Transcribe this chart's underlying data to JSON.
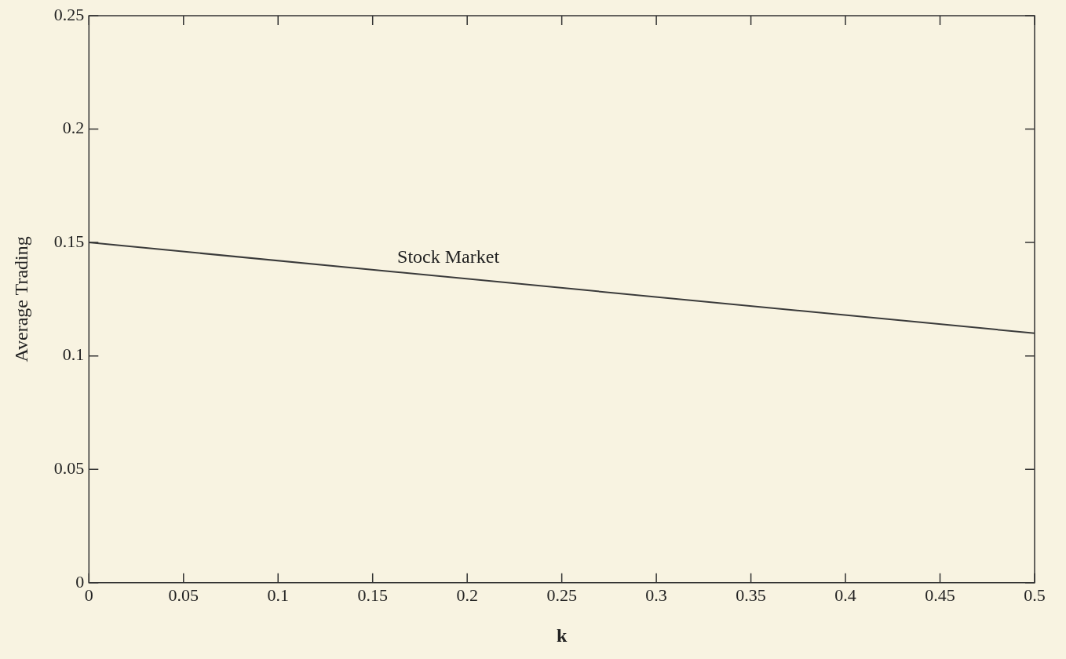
{
  "chart_data": {
    "type": "line",
    "xlabel": "k",
    "ylabel": "Average Trading",
    "x": [
      0,
      0.5
    ],
    "series": [
      {
        "name": "Stock Market",
        "color": "#3a3a3a",
        "values": [
          0.15,
          0.11
        ]
      }
    ],
    "xlim": [
      0,
      0.5
    ],
    "xticks": [
      0,
      0.05,
      0.1,
      0.15,
      0.2,
      0.25,
      0.3,
      0.35,
      0.4,
      0.45,
      0.5
    ],
    "ylim": [
      0,
      0.25
    ],
    "yticks": [
      0,
      0.05,
      0.1,
      0.15,
      0.2,
      0.25
    ],
    "marker": "none",
    "line_style": "solid"
  }
}
